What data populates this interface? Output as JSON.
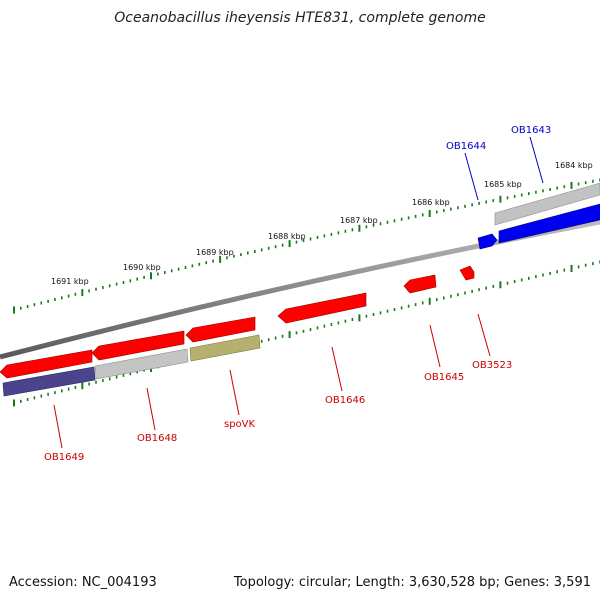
{
  "title": "Oceanobacillus iheyensis HTE831, complete genome",
  "footer": {
    "accession": "Accession: NC_004193",
    "summary": "Topology: circular; Length: 3,630,528 bp; Genes: 3,591"
  },
  "colors": {
    "backbone": "#808080",
    "ticks": "#1a7a1a",
    "tick_label": "#111111",
    "red_gene": "#ff0000",
    "blue_gene": "#0000ff",
    "navy_gene": "#4a448c",
    "gray_gene": "#c4c4c4",
    "olive_gene": "#b6b070",
    "red_label": "#cc0000",
    "blue_label": "#0000cc"
  },
  "ruler_labels": [
    "1684 kbp",
    "1685 kbp",
    "1686 kbp",
    "1687 kbp",
    "1688 kbp",
    "1689 kbp",
    "1690 kbp",
    "1691 kbp"
  ],
  "gene_labels": {
    "ob1643": "OB1643",
    "ob1644": "OB1644",
    "ob1645": "OB1645",
    "ob3523": "OB3523",
    "ob1646": "OB1646",
    "spovk": "spoVK",
    "ob1648": "OB1648",
    "ob1649": "OB1649"
  }
}
